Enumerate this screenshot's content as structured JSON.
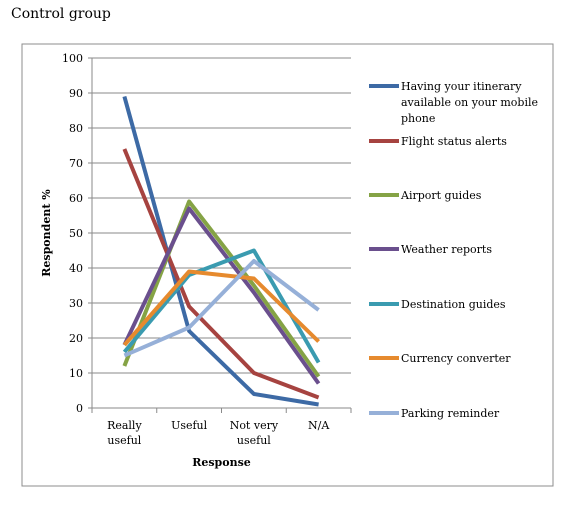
{
  "caption": "Control group",
  "chart_data": {
    "type": "line",
    "title": "",
    "xlabel": "Response",
    "ylabel": "Respondent %",
    "ylim": [
      0,
      100
    ],
    "yticks": [
      0,
      10,
      20,
      30,
      40,
      50,
      60,
      70,
      80,
      90,
      100
    ],
    "grid": true,
    "legend_position": "right",
    "categories": [
      [
        "Really",
        "useful"
      ],
      [
        "Useful"
      ],
      [
        "Not very",
        "useful"
      ],
      [
        "N/A"
      ]
    ],
    "series": [
      {
        "name": [
          "Having your itinerary",
          "available on your mobile",
          "phone"
        ],
        "color": "#3d6aa5",
        "values": [
          89,
          22,
          4,
          1
        ]
      },
      {
        "name": [
          "Flight status alerts"
        ],
        "color": "#a64340",
        "values": [
          74,
          29,
          10,
          3
        ]
      },
      {
        "name": [
          "Airport guides"
        ],
        "color": "#85a345",
        "values": [
          12,
          59,
          35,
          9
        ]
      },
      {
        "name": [
          "Weather reports"
        ],
        "color": "#6a4f8d",
        "values": [
          18,
          57,
          33,
          7
        ]
      },
      {
        "name": [
          "Destination guides"
        ],
        "color": "#3a9bb0",
        "values": [
          16,
          38,
          45,
          13
        ]
      },
      {
        "name": [
          "Currency converter"
        ],
        "color": "#e68a2e",
        "values": [
          18,
          39,
          37,
          19
        ]
      },
      {
        "name": [
          "Parking reminder"
        ],
        "color": "#96b0d8",
        "values": [
          15,
          23,
          42,
          28
        ]
      }
    ]
  }
}
